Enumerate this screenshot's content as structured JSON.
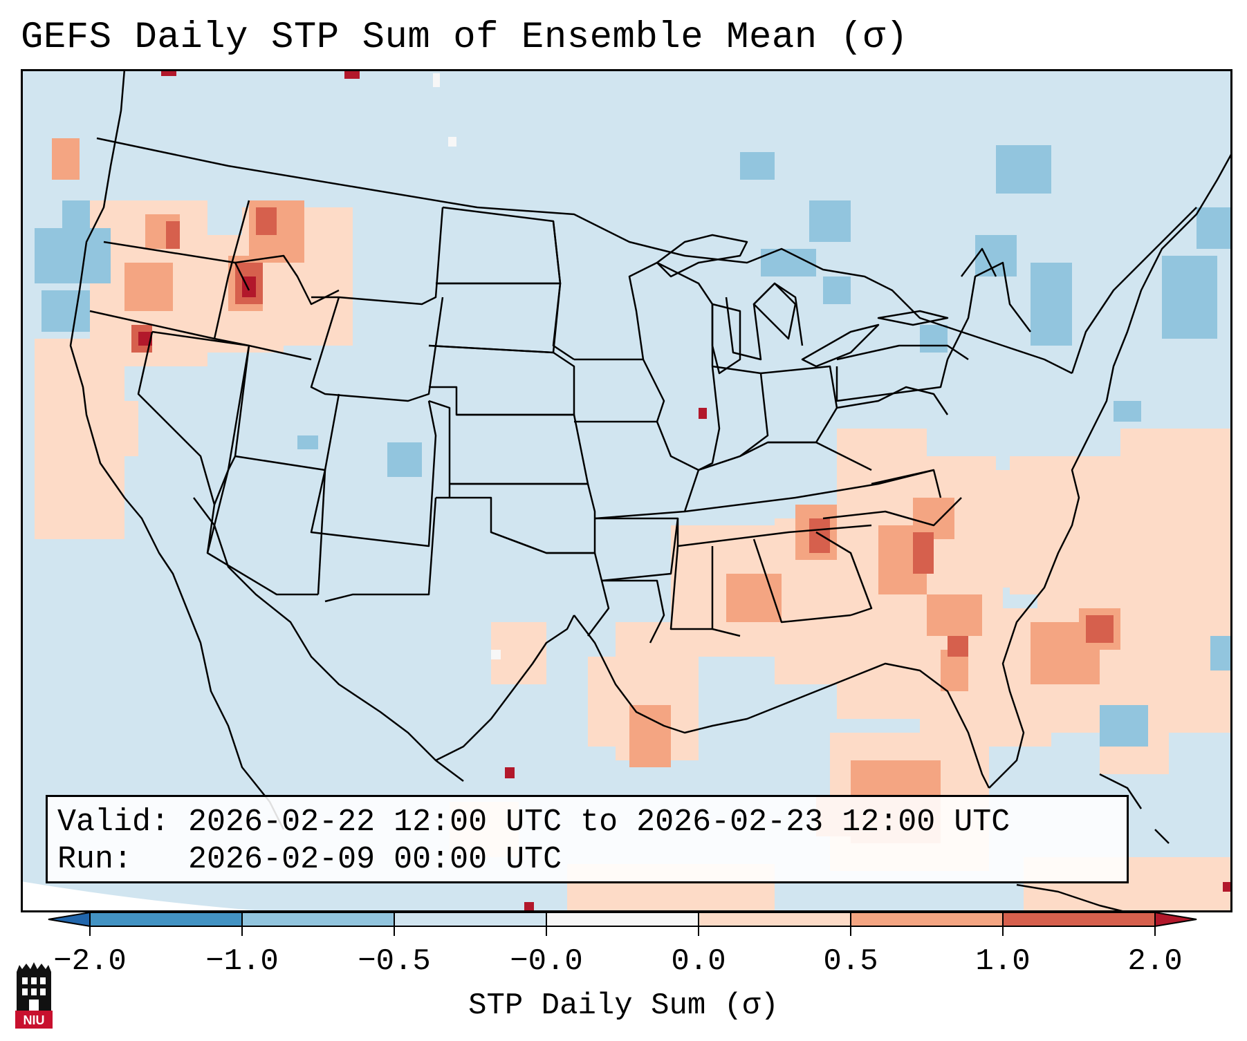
{
  "title": "GEFS Daily STP Sum of Ensemble Mean (σ)",
  "info": {
    "valid_label": "Valid:",
    "valid_value": "2026-02-22 12:00 UTC to 2026-02-23 12:00 UTC",
    "run_label": "Run:",
    "run_value": "2026-02-09 00:00 UTC"
  },
  "colorbar": {
    "label": "STP Daily Sum (σ)",
    "ticks": [
      "−2.0",
      "−1.0",
      "−0.5",
      "−0.0",
      "0.0",
      "0.5",
      "1.0",
      "2.0"
    ],
    "bins": [
      {
        "from": -2.0,
        "to": -1.0,
        "color": "#4393c3"
      },
      {
        "from": -1.0,
        "to": -0.5,
        "color": "#92c5de"
      },
      {
        "from": -0.5,
        "to": -0.0,
        "color": "#d1e5f0"
      },
      {
        "from": -0.0,
        "to": 0.0,
        "color": "#f7f7f7"
      },
      {
        "from": 0.0,
        "to": 0.5,
        "color": "#fddbc7"
      },
      {
        "from": 0.5,
        "to": 1.0,
        "color": "#f4a582"
      },
      {
        "from": 1.0,
        "to": 2.0,
        "color": "#d6604d"
      }
    ],
    "under_color": "#2166ac",
    "over_color": "#b2182b"
  },
  "map": {
    "background_color": "#d1e5f0",
    "border_color": "#000000"
  },
  "logo": {
    "text": "NIU"
  }
}
